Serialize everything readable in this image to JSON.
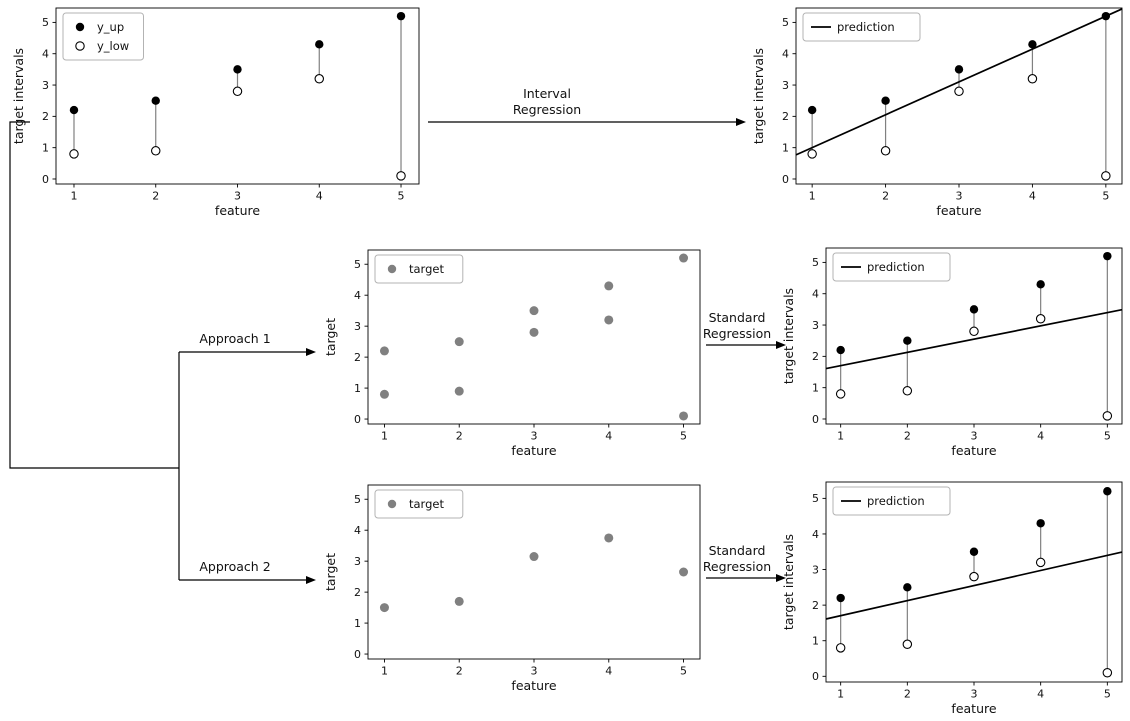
{
  "figure": {
    "background": "#ffffff",
    "colors": {
      "axis": "#000000",
      "point_up_fill": "#000000",
      "point_low_fill": "#ffffff",
      "point_low_edge": "#000000",
      "interval_stem": "#808080",
      "target_point": "#808080",
      "prediction_line": "#000000",
      "legend_border": "#b3b3b3",
      "arrow": "#000000"
    }
  },
  "arrows": {
    "interval": {
      "label": "Interval\nRegression"
    },
    "approach1": {
      "label": "Approach 1"
    },
    "standard1": {
      "label": "Standard\nRegression"
    },
    "approach2": {
      "label": "Approach 2"
    },
    "standard2": {
      "label": "Standard\nRegression"
    }
  },
  "chart_data": [
    {
      "id": "top_left",
      "type": "scatter",
      "title": "",
      "xlabel": "feature",
      "ylabel": "target intervals",
      "xticks": [
        1,
        2,
        3,
        4,
        5
      ],
      "yticks": [
        0,
        1,
        2,
        3,
        4,
        5
      ],
      "xlim": [
        0.78,
        5.22
      ],
      "ylim": [
        -0.16,
        5.46
      ],
      "legend": [
        {
          "marker": "dot_filled",
          "label": "y_up"
        },
        {
          "marker": "dot_open",
          "label": "y_low"
        }
      ],
      "intervals": {
        "x": [
          1,
          2,
          3,
          4,
          5
        ],
        "y_up": [
          2.2,
          2.5,
          3.5,
          4.3,
          5.2
        ],
        "y_low": [
          0.8,
          0.9,
          2.8,
          3.2,
          0.1
        ]
      }
    },
    {
      "id": "top_right",
      "type": "scatter",
      "title": "",
      "xlabel": "feature",
      "ylabel": "target intervals",
      "xticks": [
        1,
        2,
        3,
        4,
        5
      ],
      "yticks": [
        0,
        1,
        2,
        3,
        4,
        5
      ],
      "xlim": [
        0.78,
        5.22
      ],
      "ylim": [
        -0.16,
        5.46
      ],
      "legend": [
        {
          "marker": "line",
          "label": "prediction"
        }
      ],
      "intervals": {
        "x": [
          1,
          2,
          3,
          4,
          5
        ],
        "y_up": [
          2.2,
          2.5,
          3.5,
          4.3,
          5.2
        ],
        "y_low": [
          0.8,
          0.9,
          2.8,
          3.2,
          0.1
        ]
      },
      "line": {
        "x": [
          0.78,
          5.22
        ],
        "y": [
          0.77,
          5.43
        ]
      }
    },
    {
      "id": "mid_center",
      "type": "scatter",
      "title": "",
      "xlabel": "feature",
      "ylabel": "target",
      "xticks": [
        1,
        2,
        3,
        4,
        5
      ],
      "yticks": [
        0,
        1,
        2,
        3,
        4,
        5
      ],
      "xlim": [
        0.78,
        5.22
      ],
      "ylim": [
        -0.16,
        5.46
      ],
      "legend": [
        {
          "marker": "dot_gray",
          "label": "target"
        }
      ],
      "scatter": {
        "x": [
          1,
          1,
          2,
          2,
          3,
          3,
          4,
          4,
          5,
          5
        ],
        "y": [
          2.2,
          0.8,
          2.5,
          0.9,
          3.5,
          2.8,
          4.3,
          3.2,
          5.2,
          0.1
        ]
      }
    },
    {
      "id": "mid_right",
      "type": "scatter",
      "title": "",
      "xlabel": "feature",
      "ylabel": "target intervals",
      "xticks": [
        1,
        2,
        3,
        4,
        5
      ],
      "yticks": [
        0,
        1,
        2,
        3,
        4,
        5
      ],
      "xlim": [
        0.78,
        5.22
      ],
      "ylim": [
        -0.16,
        5.46
      ],
      "legend": [
        {
          "marker": "line",
          "label": "prediction"
        }
      ],
      "intervals": {
        "x": [
          1,
          2,
          3,
          4,
          5
        ],
        "y_up": [
          2.2,
          2.5,
          3.5,
          4.3,
          5.2
        ],
        "y_low": [
          0.8,
          0.9,
          2.8,
          3.2,
          0.1
        ]
      },
      "line": {
        "x": [
          0.78,
          5.22
        ],
        "y": [
          1.61,
          3.49
        ]
      }
    },
    {
      "id": "bot_center",
      "type": "scatter",
      "title": "",
      "xlabel": "feature",
      "ylabel": "target",
      "xticks": [
        1,
        2,
        3,
        4,
        5
      ],
      "yticks": [
        0,
        1,
        2,
        3,
        4,
        5
      ],
      "xlim": [
        0.78,
        5.22
      ],
      "ylim": [
        -0.16,
        5.46
      ],
      "legend": [
        {
          "marker": "dot_gray",
          "label": "target"
        }
      ],
      "scatter": {
        "x": [
          1,
          2,
          3,
          4,
          5
        ],
        "y": [
          1.5,
          1.7,
          3.15,
          3.75,
          2.65
        ]
      }
    },
    {
      "id": "bot_right",
      "type": "scatter",
      "title": "",
      "xlabel": "feature",
      "ylabel": "target intervals",
      "xticks": [
        1,
        2,
        3,
        4,
        5
      ],
      "yticks": [
        0,
        1,
        2,
        3,
        4,
        5
      ],
      "xlim": [
        0.78,
        5.22
      ],
      "ylim": [
        -0.16,
        5.46
      ],
      "legend": [
        {
          "marker": "line",
          "label": "prediction"
        }
      ],
      "intervals": {
        "x": [
          1,
          2,
          3,
          4,
          5
        ],
        "y_up": [
          2.2,
          2.5,
          3.5,
          4.3,
          5.2
        ],
        "y_low": [
          0.8,
          0.9,
          2.8,
          3.2,
          0.1
        ]
      },
      "line": {
        "x": [
          0.78,
          5.22
        ],
        "y": [
          1.61,
          3.49
        ]
      }
    }
  ]
}
